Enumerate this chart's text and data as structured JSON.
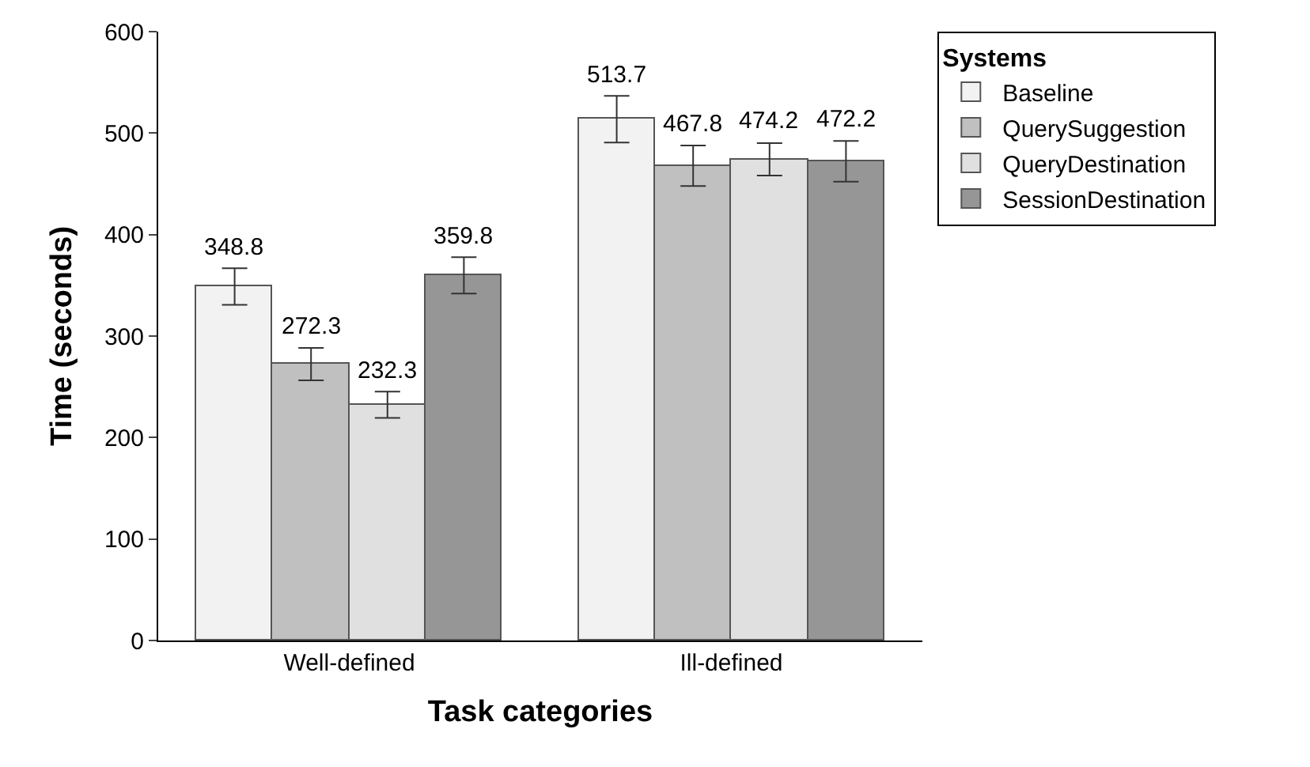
{
  "chart_data": {
    "type": "bar",
    "xlabel": "Task categories",
    "ylabel": "Time (seconds)",
    "legend_title": "Systems",
    "categories": [
      "Well-defined",
      "Ill-defined"
    ],
    "series": [
      {
        "name": "Baseline",
        "color": "#f2f2f2",
        "values": [
          348.8,
          513.7
        ],
        "errors": [
          18,
          23
        ]
      },
      {
        "name": "QuerySuggestion",
        "color": "#c0c0c0",
        "values": [
          272.3,
          467.8
        ],
        "errors": [
          16,
          20
        ]
      },
      {
        "name": "QueryDestination",
        "color": "#e0e0e0",
        "values": [
          232.3,
          474.2
        ],
        "errors": [
          13,
          16
        ]
      },
      {
        "name": "SessionDestination",
        "color": "#969696",
        "values": [
          359.8,
          472.2
        ],
        "errors": [
          18,
          20
        ]
      }
    ],
    "ylim": [
      0,
      600
    ],
    "yticks": [
      0,
      100,
      200,
      300,
      400,
      500,
      600
    ],
    "legend": "top right",
    "data_labels": true
  }
}
